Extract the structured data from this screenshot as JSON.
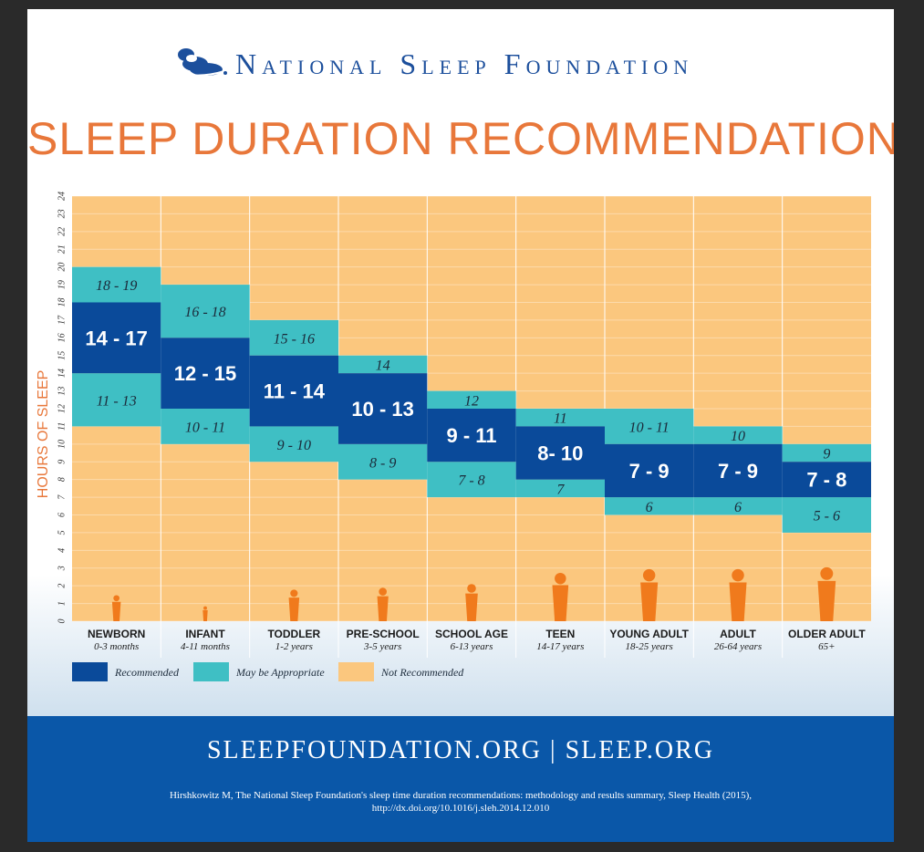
{
  "brand": {
    "name": "National Sleep Foundation",
    "logo_icon": "sleeping-figures-logo-icon"
  },
  "title": "SLEEP DURATION RECOMMENDATIONS",
  "colors": {
    "recommended": "#0a4a9a",
    "may_be_appropriate": "#3fbfc4",
    "not_recommended": "#fbc77e",
    "title": "#e8773a",
    "brand": "#1c4f9c",
    "footer": "#0a57a8"
  },
  "chart_data": {
    "type": "bar",
    "title": "",
    "ylabel": "HOURS OF SLEEP",
    "ylim": [
      0,
      24
    ],
    "yticks": [
      "0",
      "1",
      "2",
      "3",
      "4",
      "5",
      "6",
      "7",
      "8",
      "9",
      "10",
      "11",
      "12",
      "13",
      "14",
      "15",
      "16",
      "17",
      "18",
      "19",
      "20",
      "21",
      "22",
      "23",
      "24"
    ],
    "grid": true,
    "categories": [
      {
        "label": "NEWBORN",
        "age": "0-3 months",
        "figure": "newborn-figure-icon"
      },
      {
        "label": "INFANT",
        "age": "4-11 months",
        "figure": "crawling-infant-figure-icon"
      },
      {
        "label": "TODDLER",
        "age": "1-2 years",
        "figure": "toddler-figure-icon"
      },
      {
        "label": "PRE-SCHOOL",
        "age": "3-5 years",
        "figure": "preschooler-figure-icon"
      },
      {
        "label": "SCHOOL AGE",
        "age": "6-13 years",
        "figure": "school-child-figure-icon"
      },
      {
        "label": "TEEN",
        "age": "14-17 years",
        "figure": "teen-figure-icon"
      },
      {
        "label": "YOUNG ADULT",
        "age": "18-25 years",
        "figure": "young-adult-figure-icon"
      },
      {
        "label": "ADULT",
        "age": "26-64 years",
        "figure": "adult-figure-icon"
      },
      {
        "label": "OLDER ADULT",
        "age": "65+",
        "figure": "older-adult-cane-figure-icon"
      }
    ],
    "series": [
      {
        "name": "Recommended",
        "ranges": [
          [
            14,
            17
          ],
          [
            12,
            15
          ],
          [
            11,
            14
          ],
          [
            10,
            13
          ],
          [
            9,
            11
          ],
          [
            8,
            10
          ],
          [
            7,
            9
          ],
          [
            7,
            9
          ],
          [
            7,
            8
          ]
        ],
        "labels": [
          "14 - 17",
          "12 - 15",
          "11 - 14",
          "10 - 13",
          "9 - 11",
          "8- 10",
          "7 - 9",
          "7 - 9",
          "7 - 8"
        ]
      },
      {
        "name": "May be Appropriate",
        "upper_ranges": [
          [
            18,
            19
          ],
          [
            16,
            18
          ],
          [
            15,
            16
          ],
          [
            14,
            14
          ],
          [
            12,
            12
          ],
          [
            11,
            11
          ],
          [
            10,
            11
          ],
          [
            10,
            10
          ],
          [
            9,
            9
          ]
        ],
        "upper_labels": [
          "18 - 19",
          "16 - 18",
          "15 - 16",
          "14",
          "12",
          "11",
          "10 - 11",
          "10",
          "9"
        ],
        "lower_ranges": [
          [
            11,
            13
          ],
          [
            10,
            11
          ],
          [
            9,
            10
          ],
          [
            8,
            9
          ],
          [
            7,
            8
          ],
          [
            7,
            7
          ],
          [
            6,
            6
          ],
          [
            6,
            6
          ],
          [
            5,
            6
          ]
        ],
        "lower_labels": [
          "11 - 13",
          "10 - 11",
          "9 - 10",
          "8 - 9",
          "7 - 8",
          "7",
          "6",
          "6",
          "5 - 6"
        ]
      },
      {
        "name": "Not Recommended"
      }
    ],
    "legend": {
      "placement": "bottom-left",
      "items": [
        "Recommended",
        "May be Appropriate",
        "Not Recommended"
      ]
    }
  },
  "footer": {
    "url": "SLEEPFOUNDATION.ORG | SLEEP.ORG",
    "citation": "Hirshkowitz M, The National Sleep Foundation's sleep time duration recommendations: methodology and results summary, Sleep Health (2015), http://dx.doi.org/10.1016/j.sleh.2014.12.010"
  }
}
